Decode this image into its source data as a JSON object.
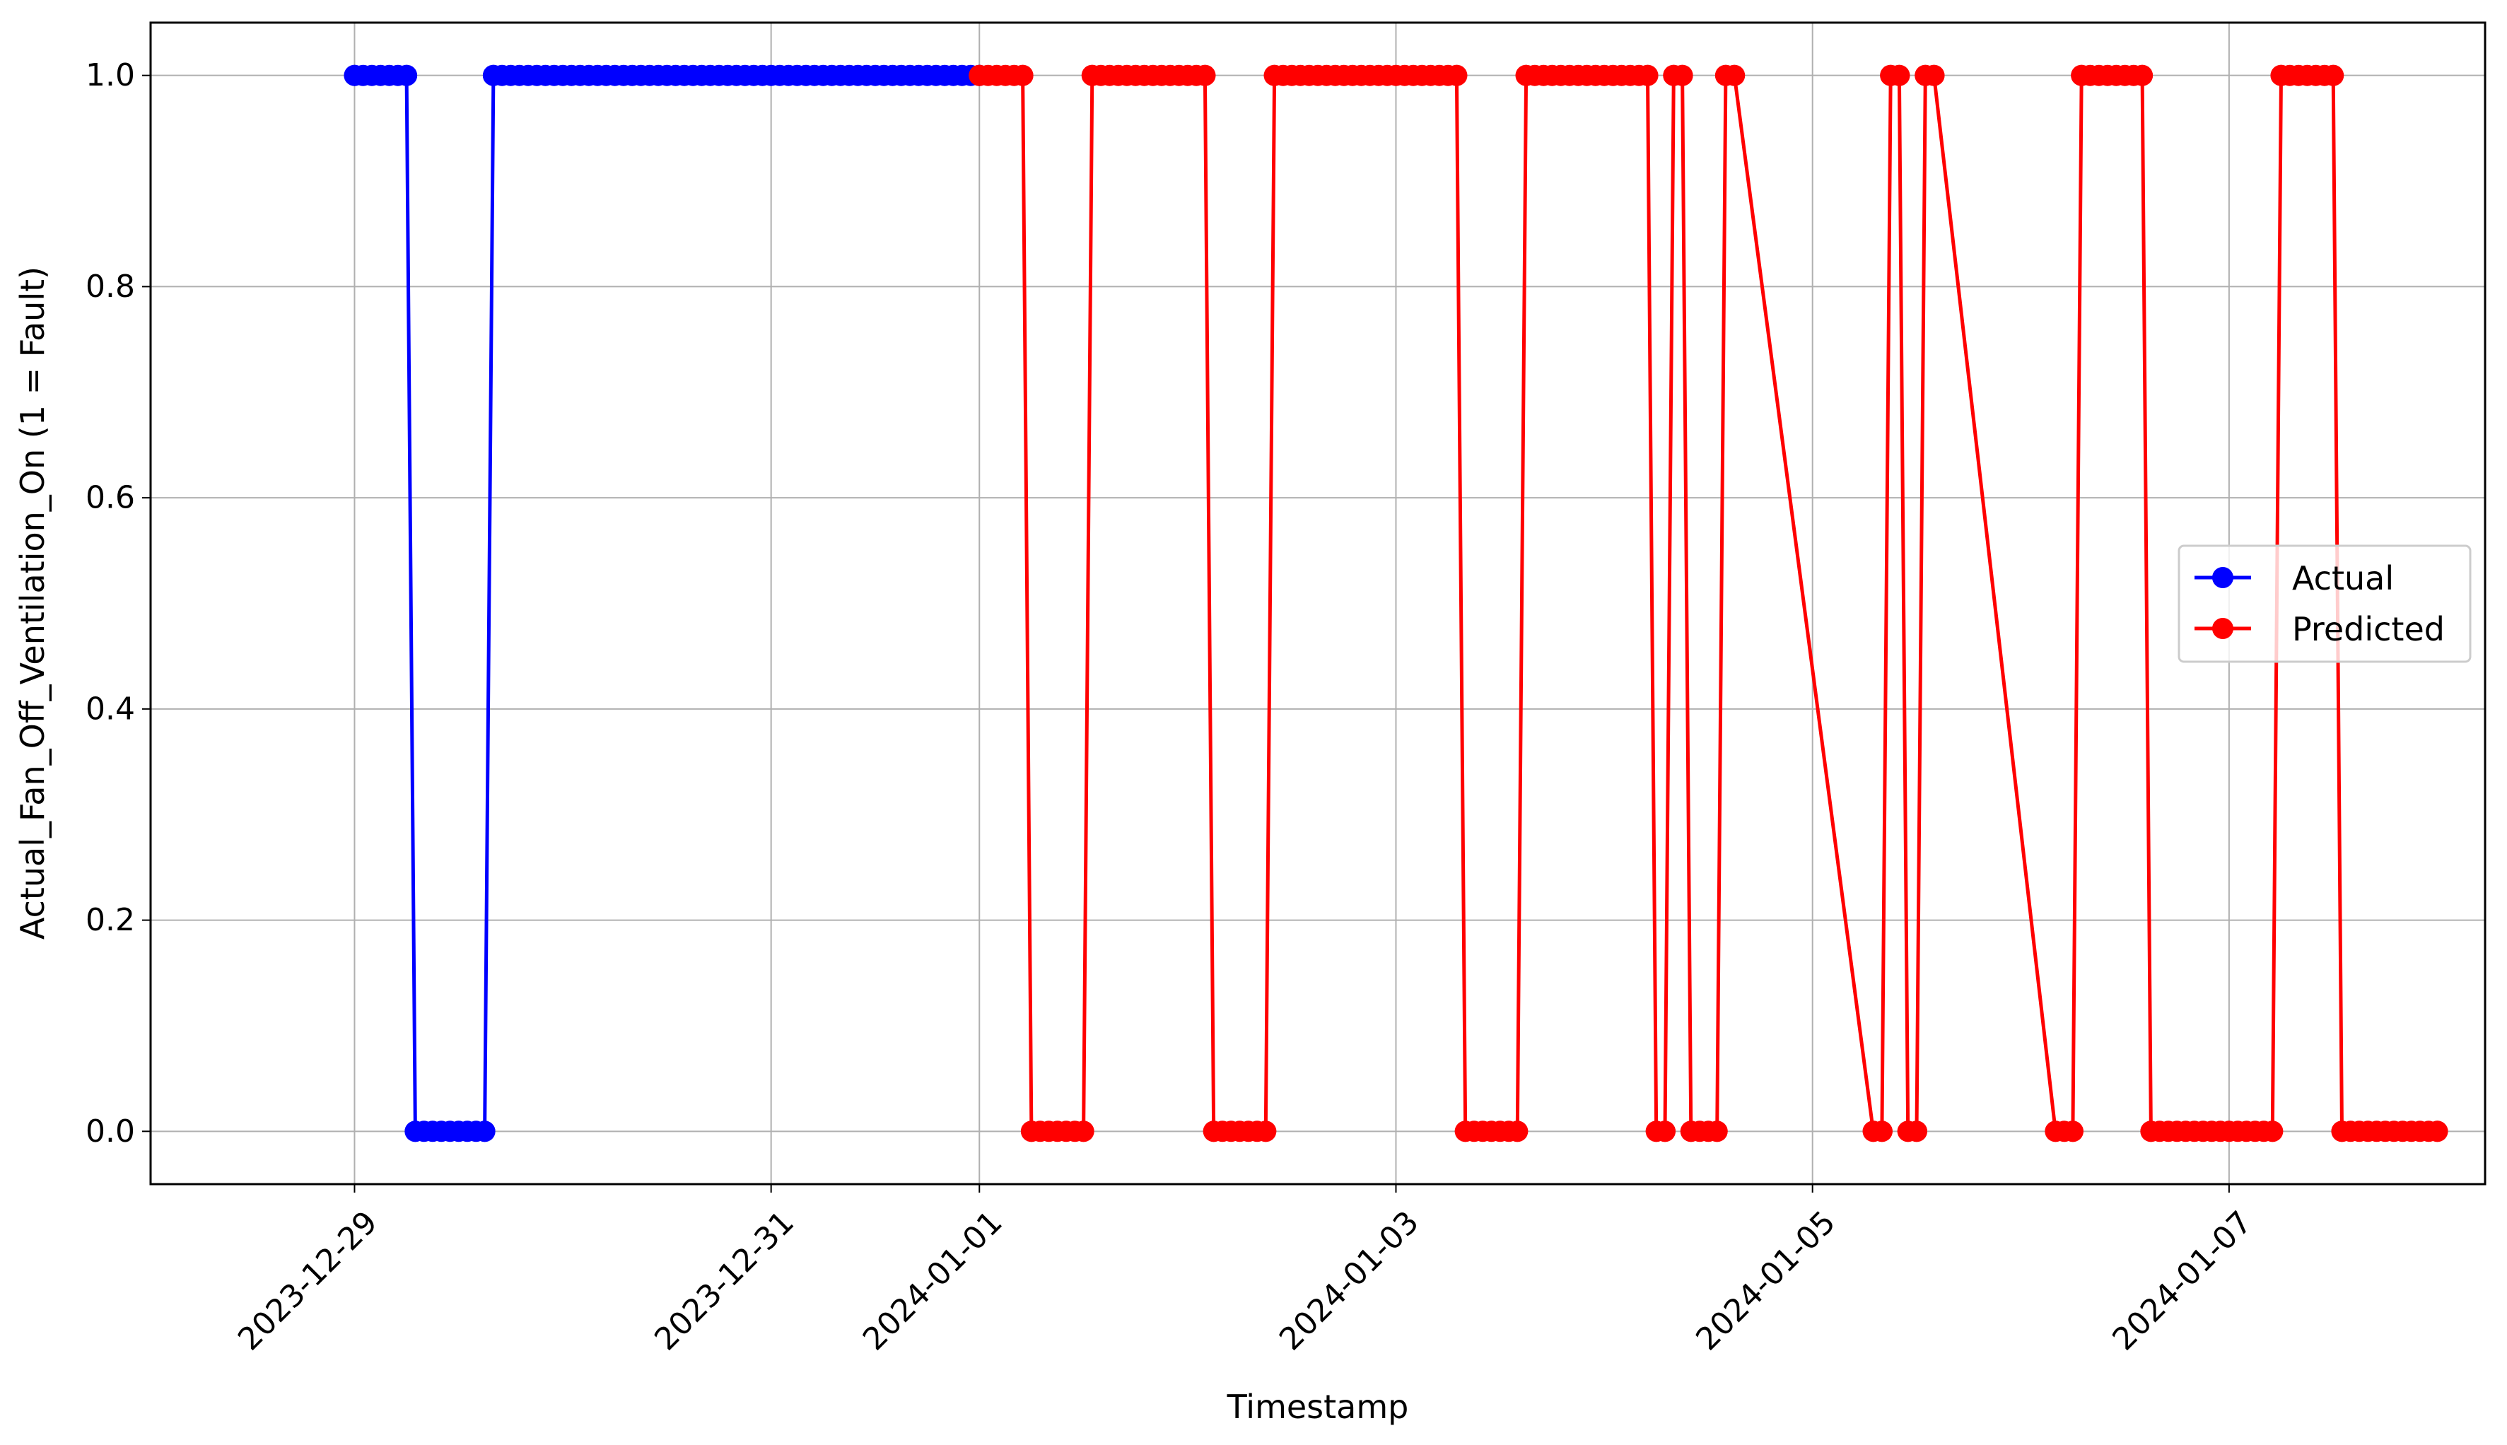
{
  "chart_data": {
    "type": "line",
    "xlabel": "Timestamp",
    "ylabel": "Actual_Fan_Off_Ventilation_On (1 = Fault)",
    "x_axis_type": "date",
    "xlim": [
      "2023-12-28T00:30",
      "2024-01-08T05:30"
    ],
    "ylim": [
      -0.05,
      1.05
    ],
    "x_ticks": [
      "2023-12-29",
      "2023-12-31",
      "2024-01-01",
      "2024-01-03",
      "2024-01-05",
      "2024-01-07"
    ],
    "y_ticks": [
      0.0,
      0.2,
      0.4,
      0.6,
      0.8,
      1.0
    ],
    "y_tick_labels": [
      "0.0",
      "0.2",
      "0.4",
      "0.6",
      "0.8",
      "1.0"
    ],
    "grid": true,
    "legend_position": "center-right",
    "marker": "circle",
    "series": [
      {
        "name": "Actual",
        "color": "#0000ff",
        "x": [
          "2023-12-29T00:00",
          "2023-12-29T06:00",
          "2023-12-29T07:00",
          "2023-12-29T15:00",
          "2023-12-29T16:00",
          "2024-01-01T00:00"
        ],
        "y": [
          1,
          1,
          0,
          0,
          1,
          1
        ]
      },
      {
        "name": "Predicted",
        "color": "#ff0000",
        "x": [
          "2024-01-01T00:00",
          "2024-01-01T05:00",
          "2024-01-01T06:00",
          "2024-01-01T12:00",
          "2024-01-01T13:00",
          "2024-01-02T02:00",
          "2024-01-02T03:00",
          "2024-01-02T09:00",
          "2024-01-02T10:00",
          "2024-01-03T07:00",
          "2024-01-03T08:00",
          "2024-01-03T14:00",
          "2024-01-03T15:00",
          "2024-01-04T05:00",
          "2024-01-04T06:00",
          "2024-01-04T07:00",
          "2024-01-04T08:00",
          "2024-01-04T09:00",
          "2024-01-04T10:00",
          "2024-01-04T13:00",
          "2024-01-04T14:00",
          "2024-01-04T15:00",
          "2024-01-05T07:00",
          "2024-01-05T08:00",
          "2024-01-05T09:00",
          "2024-01-05T10:00",
          "2024-01-05T11:00",
          "2024-01-05T12:00",
          "2024-01-05T13:00",
          "2024-01-05T14:00",
          "2024-01-06T04:00",
          "2024-01-06T06:00",
          "2024-01-06T07:00",
          "2024-01-06T14:00",
          "2024-01-06T15:00",
          "2024-01-07T05:00",
          "2024-01-07T06:00",
          "2024-01-07T12:00",
          "2024-01-07T13:00",
          "2024-01-08T00:00"
        ],
        "y": [
          1,
          1,
          0,
          0,
          1,
          1,
          0,
          0,
          1,
          1,
          0,
          0,
          1,
          1,
          0,
          0,
          1,
          1,
          0,
          0,
          1,
          1,
          0,
          0,
          1,
          1,
          0,
          0,
          1,
          1,
          0,
          0,
          1,
          1,
          0,
          0,
          1,
          1,
          0,
          0
        ]
      }
    ]
  }
}
